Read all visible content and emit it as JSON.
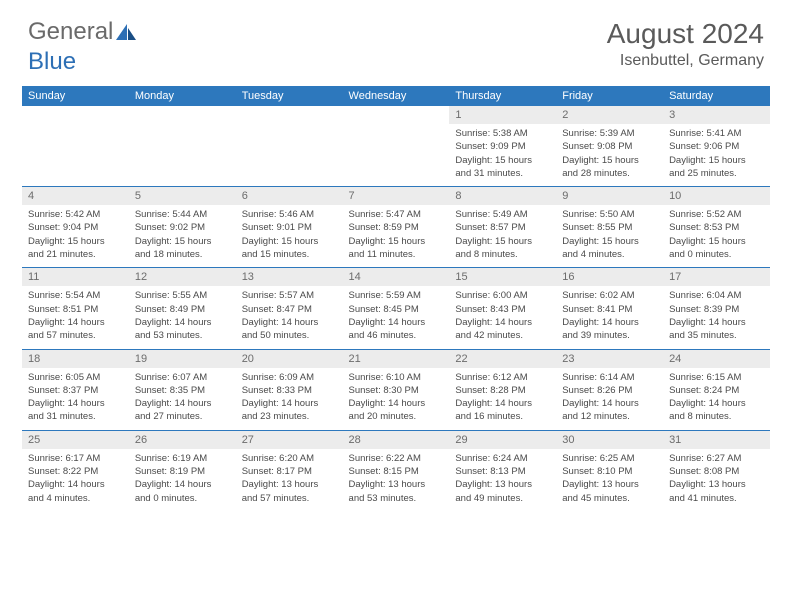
{
  "logo": {
    "general": "General",
    "blue": "Blue"
  },
  "title": {
    "month": "August 2024",
    "location": "Isenbuttel, Germany"
  },
  "colors": {
    "header_bg": "#2d78bd",
    "header_text": "#ffffff",
    "daynum_bg": "#ececec",
    "daynum_text": "#6c6c6c",
    "body_text": "#4a4a4a",
    "divider": "#2d78bd",
    "logo_gray": "#6a6a6a",
    "logo_blue": "#2d6fb5"
  },
  "day_names": [
    "Sunday",
    "Monday",
    "Tuesday",
    "Wednesday",
    "Thursday",
    "Friday",
    "Saturday"
  ],
  "weeks": [
    [
      null,
      null,
      null,
      null,
      {
        "n": "1",
        "sr": "5:38 AM",
        "ss": "9:09 PM",
        "dl": "15 hours and 31 minutes."
      },
      {
        "n": "2",
        "sr": "5:39 AM",
        "ss": "9:08 PM",
        "dl": "15 hours and 28 minutes."
      },
      {
        "n": "3",
        "sr": "5:41 AM",
        "ss": "9:06 PM",
        "dl": "15 hours and 25 minutes."
      }
    ],
    [
      {
        "n": "4",
        "sr": "5:42 AM",
        "ss": "9:04 PM",
        "dl": "15 hours and 21 minutes."
      },
      {
        "n": "5",
        "sr": "5:44 AM",
        "ss": "9:02 PM",
        "dl": "15 hours and 18 minutes."
      },
      {
        "n": "6",
        "sr": "5:46 AM",
        "ss": "9:01 PM",
        "dl": "15 hours and 15 minutes."
      },
      {
        "n": "7",
        "sr": "5:47 AM",
        "ss": "8:59 PM",
        "dl": "15 hours and 11 minutes."
      },
      {
        "n": "8",
        "sr": "5:49 AM",
        "ss": "8:57 PM",
        "dl": "15 hours and 8 minutes."
      },
      {
        "n": "9",
        "sr": "5:50 AM",
        "ss": "8:55 PM",
        "dl": "15 hours and 4 minutes."
      },
      {
        "n": "10",
        "sr": "5:52 AM",
        "ss": "8:53 PM",
        "dl": "15 hours and 0 minutes."
      }
    ],
    [
      {
        "n": "11",
        "sr": "5:54 AM",
        "ss": "8:51 PM",
        "dl": "14 hours and 57 minutes."
      },
      {
        "n": "12",
        "sr": "5:55 AM",
        "ss": "8:49 PM",
        "dl": "14 hours and 53 minutes."
      },
      {
        "n": "13",
        "sr": "5:57 AM",
        "ss": "8:47 PM",
        "dl": "14 hours and 50 minutes."
      },
      {
        "n": "14",
        "sr": "5:59 AM",
        "ss": "8:45 PM",
        "dl": "14 hours and 46 minutes."
      },
      {
        "n": "15",
        "sr": "6:00 AM",
        "ss": "8:43 PM",
        "dl": "14 hours and 42 minutes."
      },
      {
        "n": "16",
        "sr": "6:02 AM",
        "ss": "8:41 PM",
        "dl": "14 hours and 39 minutes."
      },
      {
        "n": "17",
        "sr": "6:04 AM",
        "ss": "8:39 PM",
        "dl": "14 hours and 35 minutes."
      }
    ],
    [
      {
        "n": "18",
        "sr": "6:05 AM",
        "ss": "8:37 PM",
        "dl": "14 hours and 31 minutes."
      },
      {
        "n": "19",
        "sr": "6:07 AM",
        "ss": "8:35 PM",
        "dl": "14 hours and 27 minutes."
      },
      {
        "n": "20",
        "sr": "6:09 AM",
        "ss": "8:33 PM",
        "dl": "14 hours and 23 minutes."
      },
      {
        "n": "21",
        "sr": "6:10 AM",
        "ss": "8:30 PM",
        "dl": "14 hours and 20 minutes."
      },
      {
        "n": "22",
        "sr": "6:12 AM",
        "ss": "8:28 PM",
        "dl": "14 hours and 16 minutes."
      },
      {
        "n": "23",
        "sr": "6:14 AM",
        "ss": "8:26 PM",
        "dl": "14 hours and 12 minutes."
      },
      {
        "n": "24",
        "sr": "6:15 AM",
        "ss": "8:24 PM",
        "dl": "14 hours and 8 minutes."
      }
    ],
    [
      {
        "n": "25",
        "sr": "6:17 AM",
        "ss": "8:22 PM",
        "dl": "14 hours and 4 minutes."
      },
      {
        "n": "26",
        "sr": "6:19 AM",
        "ss": "8:19 PM",
        "dl": "14 hours and 0 minutes."
      },
      {
        "n": "27",
        "sr": "6:20 AM",
        "ss": "8:17 PM",
        "dl": "13 hours and 57 minutes."
      },
      {
        "n": "28",
        "sr": "6:22 AM",
        "ss": "8:15 PM",
        "dl": "13 hours and 53 minutes."
      },
      {
        "n": "29",
        "sr": "6:24 AM",
        "ss": "8:13 PM",
        "dl": "13 hours and 49 minutes."
      },
      {
        "n": "30",
        "sr": "6:25 AM",
        "ss": "8:10 PM",
        "dl": "13 hours and 45 minutes."
      },
      {
        "n": "31",
        "sr": "6:27 AM",
        "ss": "8:08 PM",
        "dl": "13 hours and 41 minutes."
      }
    ]
  ],
  "labels": {
    "sunrise": "Sunrise:",
    "sunset": "Sunset:",
    "daylight": "Daylight:"
  }
}
